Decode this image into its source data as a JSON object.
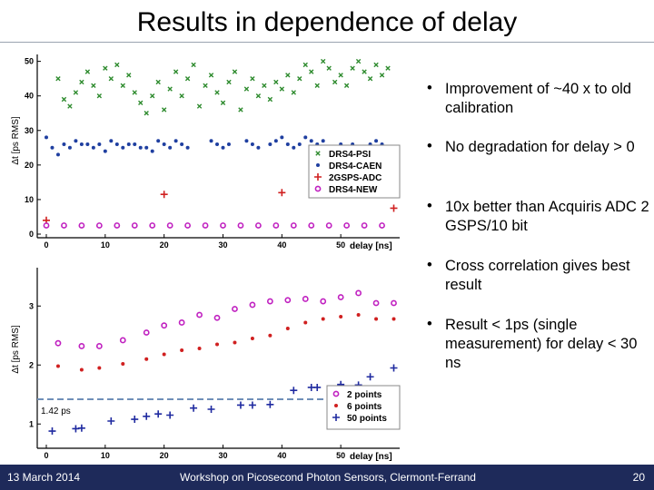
{
  "slide": {
    "title": "Results in dependence of delay"
  },
  "bullets": [
    "Improvement of ~40 x to old calibration",
    "No degradation for delay > 0",
    "10x better than Acquiris ADC 2 GSPS/10 bit",
    "Cross correlation gives best result",
    "Result < 1ps (single measurement) for delay < 30 ns"
  ],
  "footer": {
    "date": "13 March 2014",
    "event": "Workshop on Picosecond Photon Sensors, Clermont-Ferrand",
    "page": "20"
  },
  "chart_data": [
    {
      "type": "scatter",
      "ylabel": "Δt  [ps RMS]",
      "xlabel": "delay [ns]",
      "xlim": [
        0,
        60
      ],
      "ylim": [
        0,
        52
      ],
      "xticks": [
        "0",
        "10",
        "20",
        "30",
        "40",
        "50"
      ],
      "yticks": [
        "0",
        "10",
        "20",
        "30",
        "40",
        "50"
      ],
      "colors": {
        "DRS4-PSI": "#2e8b2e",
        "DRS4-CAEN": "#1f3fa0",
        "2GSPS-ADC": "#d02020",
        "DRS4-NEW": "#c020c0"
      },
      "legend": [
        "DRS4-PSI",
        "DRS4-CAEN",
        "2GSPS-ADC",
        "DRS4-NEW"
      ],
      "series": [
        {
          "name": "DRS4-PSI",
          "marker": "x",
          "points": [
            [
              2,
              45
            ],
            [
              3,
              39
            ],
            [
              4,
              37
            ],
            [
              5,
              41
            ],
            [
              6,
              44
            ],
            [
              7,
              47
            ],
            [
              8,
              43
            ],
            [
              9,
              40
            ],
            [
              10,
              48
            ],
            [
              11,
              45
            ],
            [
              12,
              49
            ],
            [
              13,
              43
            ],
            [
              14,
              46
            ],
            [
              15,
              41
            ],
            [
              16,
              38
            ],
            [
              17,
              35
            ],
            [
              18,
              40
            ],
            [
              19,
              44
            ],
            [
              20,
              36
            ],
            [
              21,
              42
            ],
            [
              22,
              47
            ],
            [
              23,
              40
            ],
            [
              24,
              45
            ],
            [
              25,
              49
            ],
            [
              26,
              37
            ],
            [
              27,
              43
            ],
            [
              28,
              46
            ],
            [
              29,
              41
            ],
            [
              30,
              38
            ],
            [
              31,
              44
            ],
            [
              32,
              47
            ],
            [
              33,
              36
            ],
            [
              34,
              42
            ],
            [
              35,
              45
            ],
            [
              36,
              40
            ],
            [
              37,
              43
            ],
            [
              38,
              39
            ],
            [
              39,
              44
            ],
            [
              40,
              42
            ],
            [
              41,
              46
            ],
            [
              42,
              41
            ],
            [
              43,
              45
            ],
            [
              44,
              49
            ],
            [
              45,
              47
            ],
            [
              46,
              43
            ],
            [
              47,
              50
            ],
            [
              48,
              48
            ],
            [
              49,
              44
            ],
            [
              50,
              46
            ],
            [
              51,
              43
            ],
            [
              52,
              48
            ],
            [
              53,
              50
            ],
            [
              54,
              47
            ],
            [
              55,
              45
            ],
            [
              56,
              49
            ],
            [
              57,
              46
            ],
            [
              58,
              48
            ]
          ]
        },
        {
          "name": "DRS4-CAEN",
          "marker": "dot",
          "points": [
            [
              0,
              28
            ],
            [
              1,
              25
            ],
            [
              2,
              23
            ],
            [
              3,
              26
            ],
            [
              4,
              25
            ],
            [
              5,
              27
            ],
            [
              6,
              26
            ],
            [
              7,
              26
            ],
            [
              8,
              25
            ],
            [
              9,
              26
            ],
            [
              10,
              24
            ],
            [
              11,
              27
            ],
            [
              12,
              26
            ],
            [
              13,
              25
            ],
            [
              14,
              26
            ],
            [
              15,
              26
            ],
            [
              16,
              25
            ],
            [
              17,
              25
            ],
            [
              18,
              24
            ],
            [
              19,
              27
            ],
            [
              20,
              26
            ],
            [
              21,
              25
            ],
            [
              22,
              27
            ],
            [
              23,
              26
            ],
            [
              24,
              25
            ],
            [
              28,
              27
            ],
            [
              29,
              26
            ],
            [
              30,
              25
            ],
            [
              31,
              26
            ],
            [
              34,
              27
            ],
            [
              35,
              26
            ],
            [
              36,
              25
            ],
            [
              38,
              26
            ],
            [
              39,
              27
            ],
            [
              40,
              28
            ],
            [
              41,
              26
            ],
            [
              42,
              25
            ],
            [
              43,
              26
            ],
            [
              44,
              28
            ],
            [
              45,
              27
            ],
            [
              46,
              26
            ],
            [
              47,
              27
            ],
            [
              50,
              26
            ],
            [
              51,
              25
            ],
            [
              52,
              26
            ],
            [
              55,
              26
            ],
            [
              56,
              27
            ],
            [
              57,
              26
            ],
            [
              58,
              24
            ]
          ]
        },
        {
          "name": "2GSPS-ADC",
          "marker": "plus",
          "points": [
            [
              0,
              4
            ],
            [
              20,
              11.5
            ],
            [
              40,
              12
            ],
            [
              59,
              7.5
            ]
          ]
        },
        {
          "name": "DRS4-NEW",
          "marker": "circle",
          "points": [
            [
              0,
              2.5
            ],
            [
              3,
              2.5
            ],
            [
              6,
              2.5
            ],
            [
              9,
              2.5
            ],
            [
              12,
              2.5
            ],
            [
              15,
              2.5
            ],
            [
              18,
              2.5
            ],
            [
              21,
              2.5
            ],
            [
              24,
              2.5
            ],
            [
              27,
              2.5
            ],
            [
              30,
              2.5
            ],
            [
              33,
              2.5
            ],
            [
              36,
              2.5
            ],
            [
              39,
              2.5
            ],
            [
              42,
              2.5
            ],
            [
              45,
              2.5
            ],
            [
              48,
              2.5
            ],
            [
              51,
              2.5
            ],
            [
              54,
              2.5
            ],
            [
              57,
              2.5
            ]
          ]
        }
      ]
    },
    {
      "type": "scatter",
      "ylabel": "Δt  [ps RMS]",
      "xlabel": "delay [ns]",
      "xlim": [
        0,
        60
      ],
      "ylim": [
        0.65,
        3.65
      ],
      "xticks": [
        "0",
        "10",
        "20",
        "30",
        "40",
        "50"
      ],
      "yticks": [
        "1",
        "2",
        "3"
      ],
      "reference_line": {
        "y": 1.42,
        "label": "1.42 ps"
      },
      "colors": {
        "2 points": "#c020c0",
        "6 points": "#d02020",
        "50 points": "#1f2aa0"
      },
      "legend": [
        "2 points",
        "6 points",
        "50 points"
      ],
      "series": [
        {
          "name": "2 points",
          "marker": "circle",
          "points": [
            [
              2,
              2.37
            ],
            [
              6,
              2.32
            ],
            [
              9,
              2.32
            ],
            [
              13,
              2.42
            ],
            [
              17,
              2.55
            ],
            [
              20,
              2.67
            ],
            [
              23,
              2.72
            ],
            [
              26,
              2.85
            ],
            [
              29,
              2.8
            ],
            [
              32,
              2.95
            ],
            [
              35,
              3.02
            ],
            [
              38,
              3.08
            ],
            [
              41,
              3.1
            ],
            [
              44,
              3.12
            ],
            [
              47,
              3.08
            ],
            [
              50,
              3.15
            ],
            [
              53,
              3.22
            ],
            [
              56,
              3.05
            ],
            [
              59,
              3.05
            ]
          ]
        },
        {
          "name": "6 points",
          "marker": "dot",
          "points": [
            [
              2,
              1.98
            ],
            [
              6,
              1.92
            ],
            [
              9,
              1.95
            ],
            [
              13,
              2.02
            ],
            [
              17,
              2.1
            ],
            [
              20,
              2.18
            ],
            [
              23,
              2.25
            ],
            [
              26,
              2.28
            ],
            [
              29,
              2.35
            ],
            [
              32,
              2.38
            ],
            [
              35,
              2.45
            ],
            [
              38,
              2.5
            ],
            [
              41,
              2.62
            ],
            [
              44,
              2.72
            ],
            [
              47,
              2.78
            ],
            [
              50,
              2.82
            ],
            [
              53,
              2.85
            ],
            [
              56,
              2.78
            ],
            [
              59,
              2.78
            ]
          ]
        },
        {
          "name": "50 points",
          "marker": "plus",
          "points": [
            [
              1,
              0.88
            ],
            [
              5,
              0.92
            ],
            [
              6,
              0.93
            ],
            [
              11,
              1.05
            ],
            [
              15,
              1.08
            ],
            [
              17,
              1.13
            ],
            [
              19,
              1.17
            ],
            [
              21,
              1.15
            ],
            [
              25,
              1.27
            ],
            [
              28,
              1.25
            ],
            [
              33,
              1.32
            ],
            [
              35,
              1.32
            ],
            [
              38,
              1.33
            ],
            [
              42,
              1.57
            ],
            [
              45,
              1.62
            ],
            [
              46,
              1.62
            ],
            [
              50,
              1.67
            ],
            [
              53,
              1.66
            ],
            [
              55,
              1.8
            ],
            [
              59,
              1.95
            ]
          ]
        }
      ]
    }
  ]
}
